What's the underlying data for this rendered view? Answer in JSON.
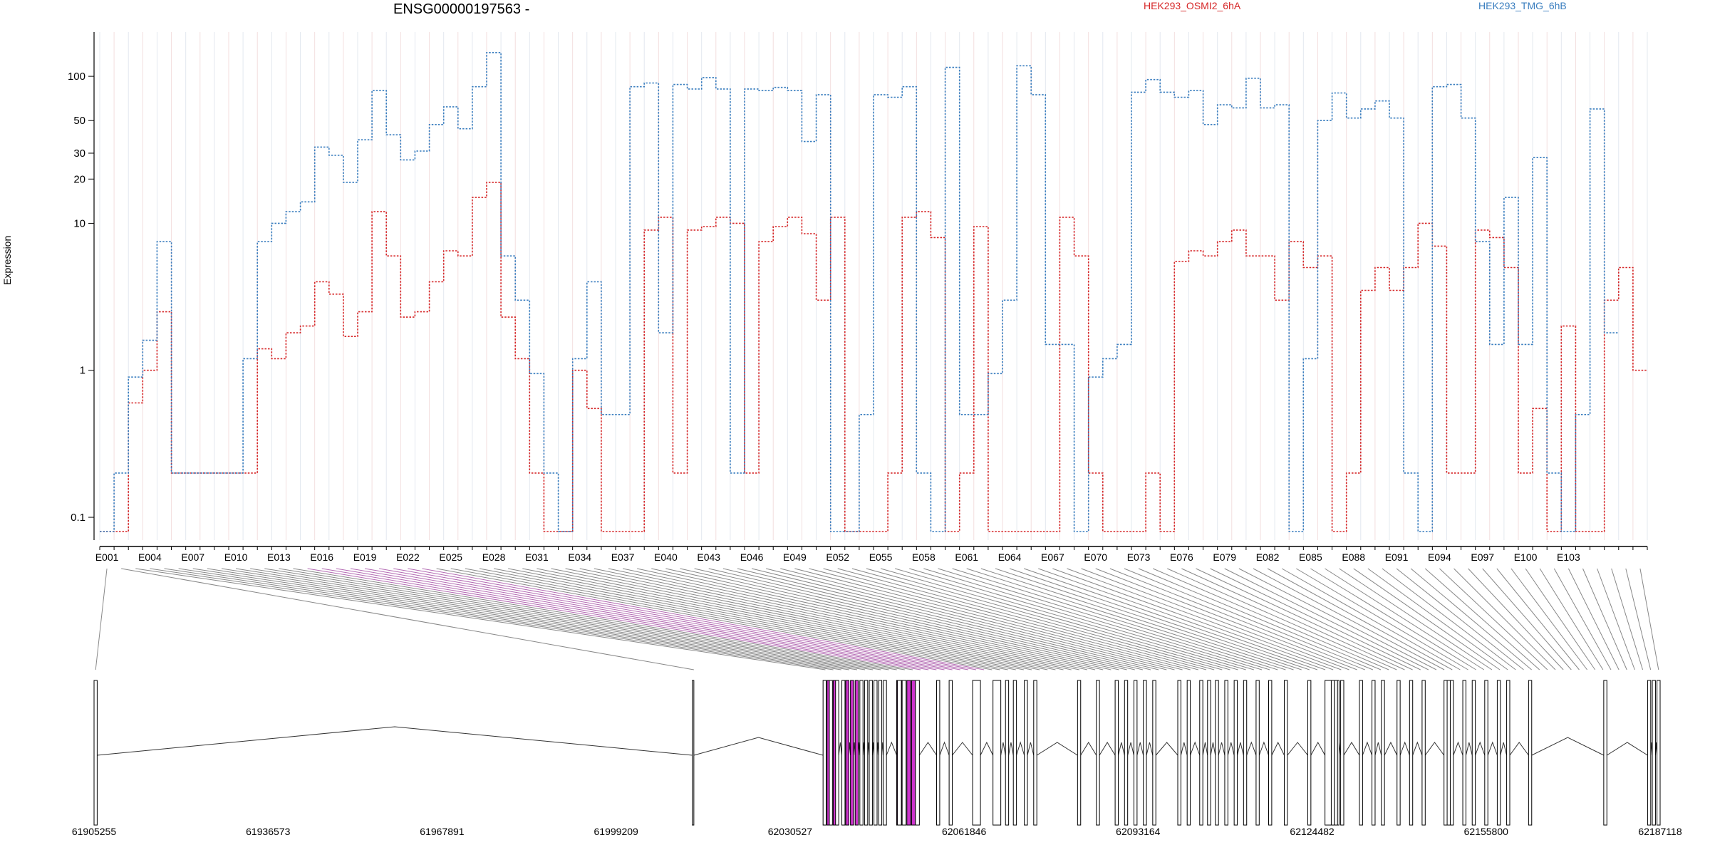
{
  "title": "ENSG00000197563 -",
  "legend": {
    "series_a": "HEK293_OSMI2_6hA",
    "series_b": "HEK293_TMG_6hB"
  },
  "ylabel": "Expression",
  "colors": {
    "series_a": "#d62728",
    "series_b": "#3a7ebf",
    "highlight": "#cc33cc",
    "exon_fill": "#ffffff"
  },
  "chart_data": {
    "type": "line",
    "title": "ENSG00000197563 -",
    "ylabel": "Expression",
    "yscale": "log",
    "ylim": [
      0.07,
      200
    ],
    "yticks": [
      0.1,
      1,
      10,
      20,
      30,
      50,
      100
    ],
    "yticklabels": [
      "0.1",
      "1",
      "10",
      "20",
      "30",
      "50",
      "100"
    ],
    "grid": "vertical lines only",
    "legend": "top",
    "xticklabels": [
      "E001",
      "E004",
      "E007",
      "E010",
      "E013",
      "E016",
      "E019",
      "E022",
      "E025",
      "E028",
      "E031",
      "E034",
      "E037",
      "E040",
      "E043",
      "E046",
      "E049",
      "E052",
      "E055",
      "E058",
      "E061",
      "E064",
      "E067",
      "E070",
      "E073",
      "E076",
      "E079",
      "E082",
      "E085",
      "E088",
      "E091",
      "E094",
      "E097",
      "E100",
      "E103"
    ],
    "series": [
      {
        "name": "HEK293_OSMI2_6hA",
        "values": [
          0.08,
          0.08,
          0.6,
          1,
          2.5,
          0.2,
          0.2,
          0.2,
          0.2,
          0.2,
          0.2,
          1.4,
          1.2,
          1.8,
          2,
          4,
          3.3,
          1.7,
          2.5,
          12,
          6,
          2.3,
          2.5,
          4,
          6.5,
          6,
          15,
          19,
          2.3,
          1.2,
          0.2,
          0.08,
          0.08,
          1,
          0.55,
          0.08,
          0.08,
          0.08,
          9,
          11,
          0.2,
          9,
          9.5,
          11,
          10,
          0.2,
          7.5,
          9.5,
          11,
          8.5,
          3,
          11,
          0.08,
          0.08,
          0.08,
          0.2,
          11,
          12,
          8,
          0.08,
          0.2,
          9.5,
          0.08,
          0.08,
          0.08,
          0.08,
          0.08,
          11,
          6,
          0.2,
          0.08,
          0.08,
          0.08,
          0.2,
          0.08,
          5.5,
          6.5,
          6,
          7.5,
          9,
          6,
          6,
          3,
          7.5,
          5,
          6,
          0.08,
          0.2,
          3.5,
          5,
          3.5,
          5,
          10,
          7,
          0.2,
          0.2,
          9,
          8,
          5,
          0.2,
          0.55,
          0.08,
          2,
          0.08,
          0.08,
          3,
          5,
          1
        ],
        "color": "#d62728"
      },
      {
        "name": "HEK293_TMG_6hB",
        "values": [
          0.08,
          0.2,
          0.9,
          1.6,
          7.5,
          0.2,
          0.2,
          0.2,
          0.2,
          0.2,
          1.2,
          7.5,
          10,
          12,
          14,
          33,
          29,
          19,
          37,
          80,
          40,
          27,
          31,
          47,
          62,
          44,
          85,
          145,
          6,
          3,
          0.95,
          0.2,
          0.08,
          1.2,
          4,
          0.5,
          0.5,
          85,
          90,
          1.8,
          88,
          82,
          98,
          82,
          0.2,
          82,
          80,
          84,
          80,
          36,
          75,
          0.08,
          0.08,
          0.5,
          75,
          72,
          85,
          0.2,
          0.08,
          115,
          0.5,
          0.5,
          0.95,
          3,
          118,
          75,
          1.5,
          1.5,
          0.08,
          0.9,
          1.2,
          1.5,
          78,
          95,
          78,
          72,
          80,
          47,
          64,
          61,
          97,
          61,
          64,
          0.08,
          1.2,
          50,
          77,
          52,
          60,
          68,
          52,
          0.2,
          0.08,
          85,
          88,
          52,
          7.5,
          1.5,
          15,
          1.5,
          28,
          0.2,
          0.08,
          0.5,
          60,
          1.8
        ],
        "color": "#3a7ebf"
      }
    ],
    "genomic_axis": {
      "ticklabels": [
        "61905255",
        "61936573",
        "61967891",
        "61999209",
        "62030527",
        "62061846",
        "62093164",
        "62124482",
        "62155800",
        "62187118"
      ]
    }
  }
}
